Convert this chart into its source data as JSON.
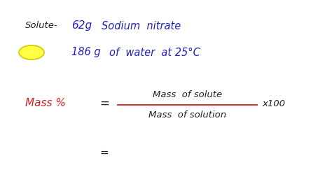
{
  "bg_color": "#ffffff",
  "line1_label": "Solute-",
  "line1_value": "62g",
  "line1_rest": "Sodium  nitrate",
  "line2_value": "186 g",
  "line2_rest": "of  water  at 25°C",
  "circle_color": "#ffff44",
  "circle_edge": "#cccc00",
  "mass_pct_label": "Mass %",
  "equals1": "=",
  "equals2": "=",
  "numerator": "Mass  of solute",
  "denominator": "Mass  of solution",
  "x100": "x100",
  "label_color": "#222222",
  "blue_color": "#2222bb",
  "red_color": "#cc2222",
  "fraction_line_color": "#cc2222",
  "dot_color": "#444400"
}
